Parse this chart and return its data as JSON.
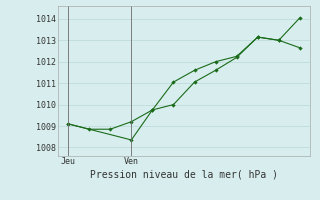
{
  "line1_x": [
    0,
    1,
    2,
    3,
    4,
    5,
    6,
    7,
    8,
    9,
    10,
    11
  ],
  "line1_y": [
    1009.1,
    1008.85,
    1008.85,
    1009.2,
    1009.75,
    1010.0,
    1011.05,
    1011.6,
    1012.2,
    1013.15,
    1013.0,
    1012.65
  ],
  "line2_x": [
    0,
    3,
    4,
    5,
    6,
    7,
    8,
    9,
    10,
    11
  ],
  "line2_y": [
    1009.1,
    1008.35,
    1009.75,
    1011.05,
    1011.6,
    1012.0,
    1012.25,
    1013.15,
    1013.0,
    1014.05
  ],
  "yticks": [
    1008,
    1009,
    1010,
    1011,
    1012,
    1013,
    1014
  ],
  "ylim": [
    1007.6,
    1014.6
  ],
  "xlim": [
    -0.5,
    11.5
  ],
  "day_labels": [
    "Jeu",
    "Ven"
  ],
  "day_positions": [
    0,
    3.0
  ],
  "xlabel": "Pression niveau de la mer( hPa )",
  "line_color": "#1a6b1a",
  "bg_color": "#d8eeee",
  "grid_color": "#c0dcdc",
  "vline_color": "#707070"
}
